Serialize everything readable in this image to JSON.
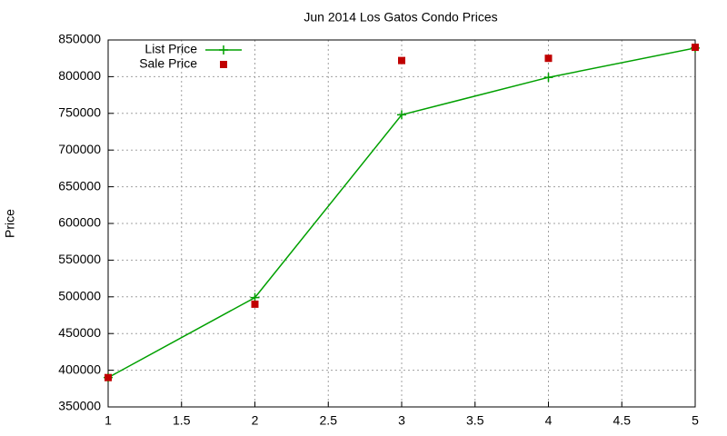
{
  "chart_data": {
    "type": "line",
    "title": "Jun 2014 Los Gatos Condo Prices",
    "ylabel": "Price",
    "x": [
      1,
      2,
      3,
      4,
      5
    ],
    "series": [
      {
        "name": "List Price",
        "color": "#00a000",
        "style": "linespoints",
        "values": [
          390000,
          499000,
          748000,
          799000,
          839000
        ]
      },
      {
        "name": "Sale Price",
        "color": "#c00000",
        "style": "points",
        "values": [
          390000,
          490000,
          822000,
          825000,
          840000
        ]
      }
    ],
    "xlim": [
      1,
      5
    ],
    "xticks": [
      1,
      1.5,
      2,
      2.5,
      3,
      3.5,
      4,
      4.5,
      5
    ],
    "ylim": [
      350000,
      850000
    ],
    "yticks": [
      350000,
      400000,
      450000,
      500000,
      550000,
      600000,
      650000,
      700000,
      750000,
      800000,
      850000
    ],
    "grid": true,
    "legend": "top-left"
  }
}
